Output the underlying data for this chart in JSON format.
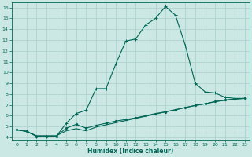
{
  "title": "",
  "xlabel": "Humidex (Indice chaleur)",
  "xlim": [
    -0.5,
    23.5
  ],
  "ylim": [
    3.8,
    16.5
  ],
  "xticks": [
    0,
    1,
    2,
    3,
    4,
    5,
    6,
    7,
    8,
    9,
    10,
    11,
    12,
    13,
    14,
    15,
    16,
    17,
    18,
    19,
    20,
    21,
    22,
    23
  ],
  "yticks": [
    4,
    5,
    6,
    7,
    8,
    9,
    10,
    11,
    12,
    13,
    14,
    15,
    16
  ],
  "background_color": "#cce8e4",
  "grid_color": "#aacfcb",
  "line_color": "#006655",
  "line1_x": [
    0,
    1,
    2,
    3,
    4,
    5,
    6,
    7,
    8,
    9,
    10,
    11,
    12,
    13,
    14,
    15,
    16,
    17,
    18,
    19,
    20,
    21,
    22,
    23
  ],
  "line1_y": [
    4.7,
    4.55,
    4.1,
    4.1,
    4.1,
    5.3,
    6.2,
    6.5,
    8.5,
    8.5,
    10.8,
    12.9,
    13.1,
    14.4,
    15.0,
    16.1,
    15.3,
    12.5,
    9.0,
    8.2,
    8.1,
    7.7,
    7.6,
    7.6
  ],
  "line2_x": [
    0,
    1,
    2,
    3,
    4,
    5,
    6,
    7,
    8,
    9,
    10,
    11,
    12,
    13,
    14,
    15,
    16,
    17,
    18,
    19,
    20,
    21,
    22,
    23
  ],
  "line2_y": [
    4.7,
    4.55,
    4.1,
    4.1,
    4.1,
    4.85,
    5.2,
    4.85,
    5.1,
    5.3,
    5.5,
    5.65,
    5.8,
    6.0,
    6.2,
    6.35,
    6.55,
    6.75,
    6.95,
    7.1,
    7.3,
    7.45,
    7.55,
    7.6
  ],
  "line3_x": [
    0,
    1,
    2,
    3,
    4,
    5,
    6,
    7,
    8,
    9,
    10,
    11,
    12,
    13,
    14,
    15,
    16,
    17,
    18,
    19,
    20,
    21,
    22,
    23
  ],
  "line3_y": [
    4.7,
    4.55,
    4.15,
    4.15,
    4.15,
    4.6,
    4.8,
    4.6,
    4.95,
    5.15,
    5.35,
    5.55,
    5.75,
    5.95,
    6.15,
    6.35,
    6.55,
    6.75,
    6.95,
    7.1,
    7.3,
    7.42,
    7.52,
    7.6
  ]
}
